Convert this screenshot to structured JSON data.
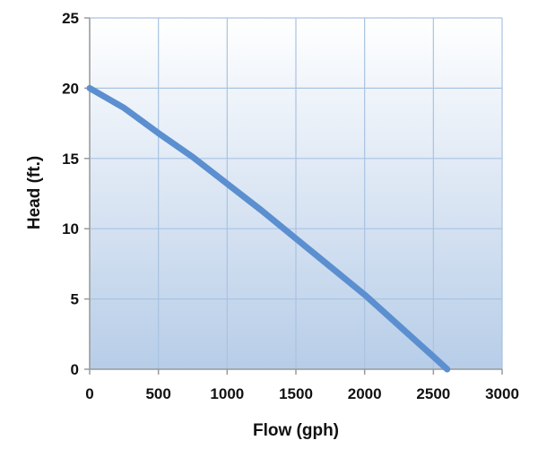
{
  "chart_data": {
    "type": "line",
    "title": "",
    "xlabel": "Flow (gph)",
    "ylabel": "Head (ft.)",
    "xlim": [
      0,
      3000
    ],
    "ylim": [
      0,
      25
    ],
    "xticks": [
      0,
      500,
      1000,
      1500,
      2000,
      2500,
      3000
    ],
    "yticks": [
      0,
      5,
      10,
      15,
      20,
      25
    ],
    "xtick_labels": [
      "0",
      "500",
      "1000",
      "1500",
      "2000",
      "2500",
      "3000"
    ],
    "ytick_labels": [
      "0",
      "5",
      "10",
      "15",
      "20",
      "25"
    ],
    "grid": true,
    "legend": "none",
    "colors": {
      "line": "#5b8fd0",
      "grid": "#a9c3e2",
      "plot_top": "#ffffff",
      "plot_bottom": "#b7cde8",
      "axis": "#9a9a9a"
    },
    "series": [
      {
        "x": [
          0,
          250,
          500,
          750,
          1000,
          1250,
          1500,
          1750,
          2000,
          2250,
          2500,
          2600
        ],
        "y": [
          20,
          18.6,
          16.8,
          15.1,
          13.2,
          11.3,
          9.3,
          7.3,
          5.3,
          3.1,
          0.9,
          0
        ]
      }
    ]
  }
}
